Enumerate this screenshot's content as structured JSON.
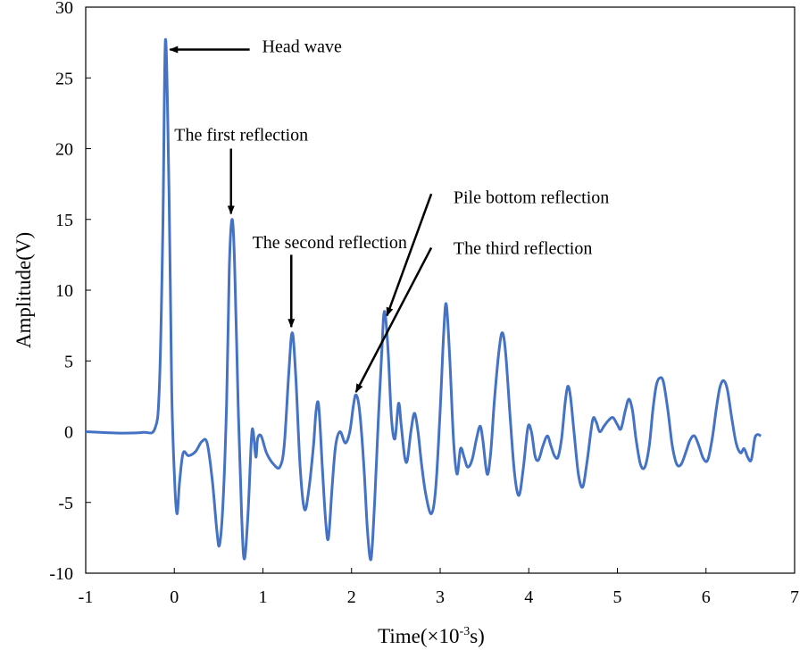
{
  "chart_data": {
    "type": "line",
    "title": "",
    "xlabel_main": "Time(×10",
    "xlabel_sup": "-3",
    "xlabel_tail": "s)",
    "ylabel": "Amplitude(V)",
    "xlim": [
      -1,
      7
    ],
    "ylim": [
      -10,
      30
    ],
    "grid": false,
    "xticks": [
      -1,
      0,
      1,
      2,
      3,
      4,
      5,
      6,
      7
    ],
    "yticks": [
      -10,
      -5,
      0,
      5,
      10,
      15,
      20,
      25,
      30
    ],
    "series_color": "#4472C4",
    "series": [
      {
        "name": "Amplitude",
        "points": [
          [
            -1.0,
            0.0
          ],
          [
            -0.6,
            -0.1
          ],
          [
            -0.35,
            -0.05
          ],
          [
            -0.22,
            0.2
          ],
          [
            -0.17,
            3.0
          ],
          [
            -0.13,
            14.0
          ],
          [
            -0.1,
            27.7
          ],
          [
            -0.06,
            17.0
          ],
          [
            -0.03,
            3.0
          ],
          [
            0.0,
            -3.0
          ],
          [
            0.03,
            -5.8
          ],
          [
            0.06,
            -3.5
          ],
          [
            0.1,
            -1.5
          ],
          [
            0.16,
            -1.7
          ],
          [
            0.24,
            -1.4
          ],
          [
            0.31,
            -0.7
          ],
          [
            0.37,
            -0.8
          ],
          [
            0.43,
            -3.5
          ],
          [
            0.48,
            -7.0
          ],
          [
            0.51,
            -8.0
          ],
          [
            0.55,
            -5.0
          ],
          [
            0.59,
            2.0
          ],
          [
            0.62,
            11.5
          ],
          [
            0.65,
            15.0
          ],
          [
            0.68,
            12.0
          ],
          [
            0.72,
            2.0
          ],
          [
            0.76,
            -6.0
          ],
          [
            0.79,
            -9.0
          ],
          [
            0.83,
            -6.0
          ],
          [
            0.87,
            -0.5
          ],
          [
            0.89,
            0.0
          ],
          [
            0.92,
            -1.8
          ],
          [
            0.94,
            -0.5
          ],
          [
            0.98,
            -0.3
          ],
          [
            1.04,
            -1.5
          ],
          [
            1.12,
            -2.3
          ],
          [
            1.19,
            -2.5
          ],
          [
            1.24,
            -1.0
          ],
          [
            1.29,
            4.0
          ],
          [
            1.33,
            7.0
          ],
          [
            1.37,
            4.0
          ],
          [
            1.42,
            -2.5
          ],
          [
            1.47,
            -5.5
          ],
          [
            1.52,
            -4.0
          ],
          [
            1.57,
            -1.0
          ],
          [
            1.6,
            1.5
          ],
          [
            1.63,
            1.8
          ],
          [
            1.67,
            -2.5
          ],
          [
            1.71,
            -6.5
          ],
          [
            1.74,
            -7.5
          ],
          [
            1.78,
            -4.0
          ],
          [
            1.82,
            -1.0
          ],
          [
            1.87,
            0.0
          ],
          [
            1.93,
            -0.8
          ],
          [
            1.98,
            0.0
          ],
          [
            2.02,
            1.8
          ],
          [
            2.05,
            2.6
          ],
          [
            2.09,
            1.5
          ],
          [
            2.14,
            -2.5
          ],
          [
            2.18,
            -7.0
          ],
          [
            2.22,
            -9.0
          ],
          [
            2.26,
            -5.0
          ],
          [
            2.3,
            0.5
          ],
          [
            2.34,
            5.5
          ],
          [
            2.37,
            8.5
          ],
          [
            2.41,
            6.0
          ],
          [
            2.45,
            1.0
          ],
          [
            2.49,
            -0.5
          ],
          [
            2.53,
            2.0
          ],
          [
            2.56,
            0.5
          ],
          [
            2.6,
            -1.8
          ],
          [
            2.63,
            -2.0
          ],
          [
            2.67,
            0.0
          ],
          [
            2.71,
            1.3
          ],
          [
            2.75,
            0.0
          ],
          [
            2.79,
            -2.3
          ],
          [
            2.84,
            -4.5
          ],
          [
            2.9,
            -5.8
          ],
          [
            2.95,
            -4.0
          ],
          [
            3.0,
            1.5
          ],
          [
            3.04,
            7.0
          ],
          [
            3.07,
            9.0
          ],
          [
            3.11,
            5.0
          ],
          [
            3.15,
            -0.5
          ],
          [
            3.19,
            -3.0
          ],
          [
            3.23,
            -1.2
          ],
          [
            3.27,
            -1.8
          ],
          [
            3.31,
            -2.5
          ],
          [
            3.36,
            -2.0
          ],
          [
            3.41,
            -0.5
          ],
          [
            3.45,
            0.4
          ],
          [
            3.48,
            -0.5
          ],
          [
            3.53,
            -3.0
          ],
          [
            3.57,
            -1.5
          ],
          [
            3.61,
            2.0
          ],
          [
            3.66,
            5.5
          ],
          [
            3.7,
            7.0
          ],
          [
            3.74,
            5.5
          ],
          [
            3.79,
            1.0
          ],
          [
            3.84,
            -3.0
          ],
          [
            3.89,
            -4.5
          ],
          [
            3.94,
            -2.5
          ],
          [
            3.99,
            0.3
          ],
          [
            4.03,
            0.0
          ],
          [
            4.07,
            -1.7
          ],
          [
            4.11,
            -2.0
          ],
          [
            4.16,
            -1.0
          ],
          [
            4.21,
            -0.3
          ],
          [
            4.25,
            -1.0
          ],
          [
            4.29,
            -1.7
          ],
          [
            4.33,
            -1.8
          ],
          [
            4.37,
            -0.5
          ],
          [
            4.41,
            2.0
          ],
          [
            4.44,
            3.2
          ],
          [
            4.47,
            2.5
          ],
          [
            4.51,
            0.0
          ],
          [
            4.56,
            -3.0
          ],
          [
            4.61,
            -3.9
          ],
          [
            4.66,
            -2.0
          ],
          [
            4.72,
            0.8
          ],
          [
            4.76,
            0.7
          ],
          [
            4.8,
            0.0
          ],
          [
            4.85,
            0.4
          ],
          [
            4.9,
            0.8
          ],
          [
            4.95,
            1.0
          ],
          [
            5.0,
            0.5
          ],
          [
            5.04,
            0.2
          ],
          [
            5.09,
            1.5
          ],
          [
            5.13,
            2.3
          ],
          [
            5.17,
            1.5
          ],
          [
            5.21,
            -0.5
          ],
          [
            5.26,
            -2.3
          ],
          [
            5.31,
            -2.5
          ],
          [
            5.36,
            -1.0
          ],
          [
            5.4,
            1.5
          ],
          [
            5.44,
            3.3
          ],
          [
            5.48,
            3.8
          ],
          [
            5.52,
            3.5
          ],
          [
            5.57,
            1.5
          ],
          [
            5.62,
            -1.0
          ],
          [
            5.67,
            -2.3
          ],
          [
            5.72,
            -2.3
          ],
          [
            5.77,
            -1.5
          ],
          [
            5.82,
            -0.6
          ],
          [
            5.87,
            -0.3
          ],
          [
            5.92,
            -1.0
          ],
          [
            5.97,
            -1.9
          ],
          [
            6.02,
            -2.0
          ],
          [
            6.07,
            -0.5
          ],
          [
            6.12,
            1.8
          ],
          [
            6.16,
            3.2
          ],
          [
            6.2,
            3.6
          ],
          [
            6.24,
            3.0
          ],
          [
            6.29,
            1.0
          ],
          [
            6.34,
            -0.8
          ],
          [
            6.39,
            -1.5
          ],
          [
            6.43,
            -1.2
          ],
          [
            6.47,
            -1.8
          ],
          [
            6.51,
            -2.0
          ],
          [
            6.55,
            -0.5
          ],
          [
            6.58,
            -0.2
          ],
          [
            6.62,
            -0.3
          ]
        ]
      }
    ],
    "annotations": [
      {
        "text": "Head wave",
        "text_x": 0.99,
        "text_y": 27.25,
        "arrow_from": [
          0.85,
          27.0
        ],
        "arrow_to": [
          -0.05,
          27.0
        ],
        "anchor": "start"
      },
      {
        "text": "The first reflection",
        "text_x": 0.0,
        "text_y": 21.0,
        "arrow_from": [
          0.64,
          20.0
        ],
        "arrow_to": [
          0.64,
          15.4
        ],
        "anchor": "start"
      },
      {
        "text": "The second reflection",
        "text_x": 0.88,
        "text_y": 13.4,
        "arrow_from": [
          1.32,
          12.5
        ],
        "arrow_to": [
          1.32,
          7.4
        ],
        "anchor": "start"
      },
      {
        "text": "Pile bottom reflection",
        "text_x": 3.15,
        "text_y": 16.6,
        "arrow_from": [
          2.9,
          16.8
        ],
        "arrow_to": [
          2.4,
          8.2
        ],
        "anchor": "start"
      },
      {
        "text": "The third reflection",
        "text_x": 3.15,
        "text_y": 13.0,
        "arrow_from": [
          2.9,
          13.0
        ],
        "arrow_to": [
          2.05,
          2.8
        ],
        "anchor": "start"
      }
    ]
  }
}
